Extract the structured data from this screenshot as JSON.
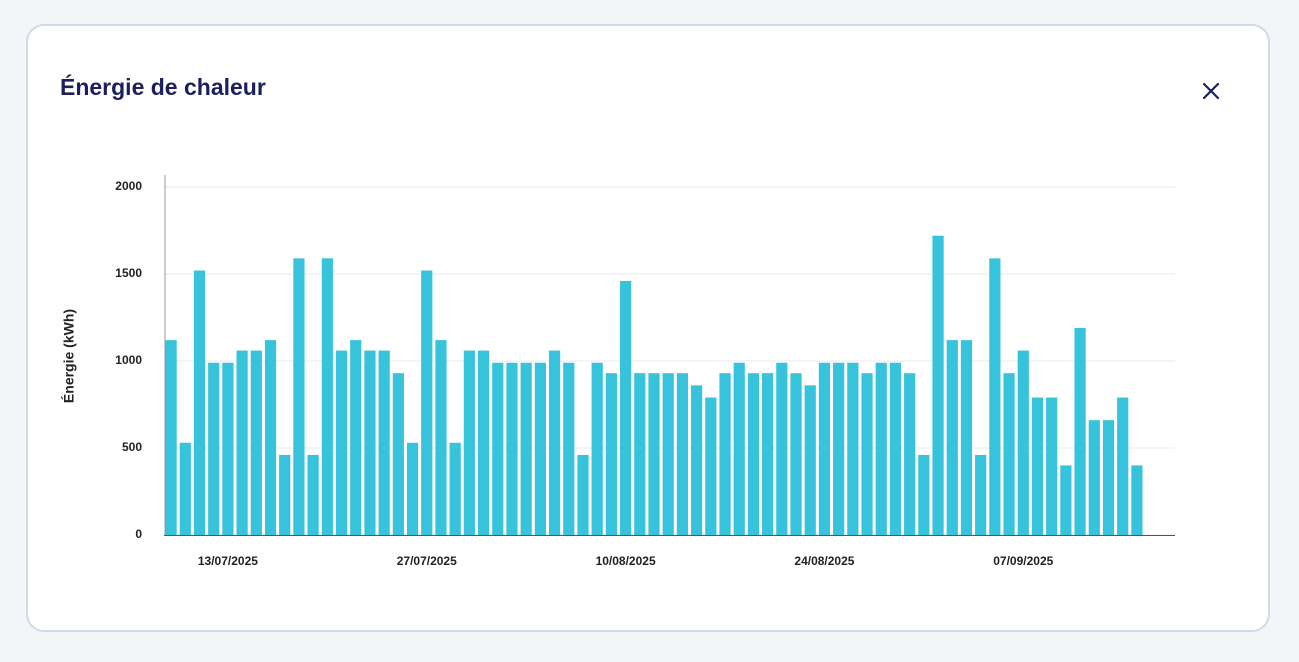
{
  "header": {
    "title": "Énergie de chaleur"
  },
  "chart_data": {
    "type": "bar",
    "y_label": "Énergie (kWh)",
    "color": "#38c3dc",
    "grid": true,
    "categories": [
      null,
      null,
      null,
      null,
      "13/07/2025",
      null,
      null,
      null,
      null,
      null,
      null,
      null,
      null,
      null,
      null,
      null,
      null,
      null,
      "27/07/2025",
      null,
      null,
      null,
      null,
      null,
      null,
      null,
      null,
      null,
      null,
      null,
      null,
      null,
      "10/08/2025",
      null,
      null,
      null,
      null,
      null,
      null,
      null,
      null,
      null,
      null,
      null,
      null,
      null,
      "24/08/2025",
      null,
      null,
      null,
      null,
      null,
      null,
      null,
      null,
      null,
      null,
      null,
      null,
      null,
      "07/09/2025",
      null,
      null,
      null,
      null,
      null,
      null,
      null,
      null
    ],
    "values": [
      1120,
      530,
      1520,
      990,
      990,
      1060,
      1060,
      1120,
      460,
      1590,
      460,
      1590,
      1060,
      1120,
      1060,
      1060,
      930,
      530,
      1520,
      1120,
      530,
      1060,
      1060,
      990,
      990,
      990,
      990,
      1060,
      990,
      460,
      990,
      930,
      1460,
      930,
      930,
      930,
      930,
      860,
      790,
      930,
      990,
      930,
      930,
      990,
      930,
      860,
      990,
      990,
      990,
      930,
      990,
      990,
      930,
      460,
      1720,
      1120,
      1120,
      460,
      1590,
      930,
      1060,
      790,
      790,
      400,
      1190,
      660,
      660,
      790,
      400
    ],
    "ylim": [
      0,
      2000
    ],
    "yticks": [
      0,
      500,
      1000,
      1500,
      2000
    ]
  }
}
